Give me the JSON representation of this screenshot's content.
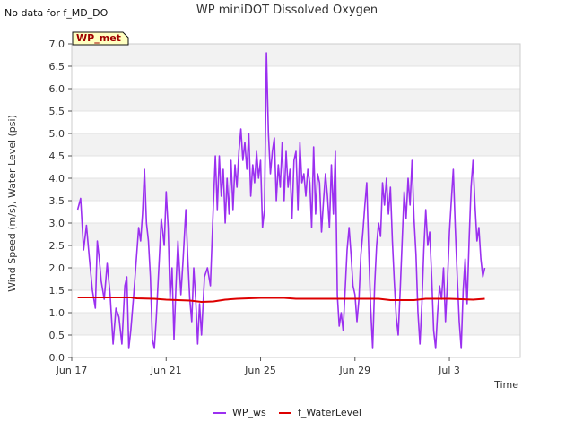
{
  "corner_note": "No data for f_MD_DO",
  "chart_data": {
    "type": "line",
    "title": "WP miniDOT Dissolved Oxygen",
    "xlabel": "Time",
    "ylabel": "Wind Speed (m/s), Water Level (psi)",
    "badge": "WP_met",
    "ylim": [
      0,
      7
    ],
    "yticks": [
      "0.0",
      "0.5",
      "1.0",
      "1.5",
      "2.0",
      "2.5",
      "3.0",
      "3.5",
      "4.0",
      "4.5",
      "5.0",
      "5.5",
      "6.0",
      "6.5",
      "7.0"
    ],
    "xlim": [
      "2024-06-17",
      "2024-07-06"
    ],
    "xticks": [
      {
        "date": "2024-06-17",
        "label": "Jun 17"
      },
      {
        "date": "2024-06-21",
        "label": "Jun 21"
      },
      {
        "date": "2024-06-25",
        "label": "Jun 25"
      },
      {
        "date": "2024-06-29",
        "label": "Jun 29"
      },
      {
        "date": "2024-07-03",
        "label": "Jul 3"
      }
    ],
    "grid": true,
    "legend_position": "bottom",
    "series": [
      {
        "name": "WP_ws",
        "color": "#9b30f0",
        "points": [
          [
            "2024-06-17 06:00",
            3.3
          ],
          [
            "2024-06-17 09:00",
            3.55
          ],
          [
            "2024-06-17 12:00",
            2.4
          ],
          [
            "2024-06-17 15:00",
            2.95
          ],
          [
            "2024-06-17 18:00",
            2.2
          ],
          [
            "2024-06-17 21:00",
            1.5
          ],
          [
            "2024-06-18 00:00",
            1.1
          ],
          [
            "2024-06-18 02:00",
            2.6
          ],
          [
            "2024-06-18 04:00",
            2.2
          ],
          [
            "2024-06-18 06:00",
            1.7
          ],
          [
            "2024-06-18 09:00",
            1.3
          ],
          [
            "2024-06-18 12:00",
            2.1
          ],
          [
            "2024-06-18 15:00",
            1.4
          ],
          [
            "2024-06-18 18:00",
            0.3
          ],
          [
            "2024-06-18 21:00",
            1.1
          ],
          [
            "2024-06-19 00:00",
            0.9
          ],
          [
            "2024-06-19 03:00",
            0.3
          ],
          [
            "2024-06-19 06:00",
            1.6
          ],
          [
            "2024-06-19 08:00",
            1.8
          ],
          [
            "2024-06-19 10:00",
            0.2
          ],
          [
            "2024-06-19 12:00",
            0.6
          ],
          [
            "2024-06-19 15:00",
            1.4
          ],
          [
            "2024-06-19 17:00",
            2.0
          ],
          [
            "2024-06-19 20:00",
            2.9
          ],
          [
            "2024-06-19 22:00",
            2.6
          ],
          [
            "2024-06-20 00:00",
            3.2
          ],
          [
            "2024-06-20 02:00",
            4.2
          ],
          [
            "2024-06-20 04:00",
            3.0
          ],
          [
            "2024-06-20 06:00",
            2.6
          ],
          [
            "2024-06-20 08:00",
            1.8
          ],
          [
            "2024-06-20 10:00",
            0.4
          ],
          [
            "2024-06-20 12:00",
            0.2
          ],
          [
            "2024-06-20 14:00",
            0.9
          ],
          [
            "2024-06-20 17:00",
            2.2
          ],
          [
            "2024-06-20 19:00",
            3.1
          ],
          [
            "2024-06-20 22:00",
            2.5
          ],
          [
            "2024-06-21 00:00",
            3.7
          ],
          [
            "2024-06-21 02:00",
            2.9
          ],
          [
            "2024-06-21 04:00",
            1.3
          ],
          [
            "2024-06-21 06:00",
            2.0
          ],
          [
            "2024-06-21 08:00",
            0.4
          ],
          [
            "2024-06-21 10:00",
            1.6
          ],
          [
            "2024-06-21 12:00",
            2.6
          ],
          [
            "2024-06-21 15:00",
            1.4
          ],
          [
            "2024-06-21 17:00",
            2.1
          ],
          [
            "2024-06-21 20:00",
            3.3
          ],
          [
            "2024-06-21 22:00",
            2.2
          ],
          [
            "2024-06-22 00:00",
            1.3
          ],
          [
            "2024-06-22 02:00",
            0.8
          ],
          [
            "2024-06-22 04:00",
            2.0
          ],
          [
            "2024-06-22 06:00",
            1.3
          ],
          [
            "2024-06-22 08:00",
            0.3
          ],
          [
            "2024-06-22 10:00",
            1.2
          ],
          [
            "2024-06-22 12:00",
            0.5
          ],
          [
            "2024-06-22 15:00",
            1.8
          ],
          [
            "2024-06-22 18:00",
            2.0
          ],
          [
            "2024-06-22 21:00",
            1.6
          ],
          [
            "2024-06-23 00:00",
            3.4
          ],
          [
            "2024-06-23 02:00",
            4.5
          ],
          [
            "2024-06-23 04:00",
            3.3
          ],
          [
            "2024-06-23 06:00",
            4.5
          ],
          [
            "2024-06-23 08:00",
            3.6
          ],
          [
            "2024-06-23 10:00",
            4.2
          ],
          [
            "2024-06-23 12:00",
            3.0
          ],
          [
            "2024-06-23 14:00",
            4.0
          ],
          [
            "2024-06-23 16:00",
            3.2
          ],
          [
            "2024-06-23 18:00",
            4.4
          ],
          [
            "2024-06-23 20:00",
            3.3
          ],
          [
            "2024-06-23 22:00",
            4.3
          ],
          [
            "2024-06-24 00:00",
            3.8
          ],
          [
            "2024-06-24 02:00",
            4.6
          ],
          [
            "2024-06-24 04:00",
            5.1
          ],
          [
            "2024-06-24 06:00",
            4.4
          ],
          [
            "2024-06-24 08:00",
            4.8
          ],
          [
            "2024-06-24 10:00",
            4.2
          ],
          [
            "2024-06-24 12:00",
            5.0
          ],
          [
            "2024-06-24 14:00",
            3.6
          ],
          [
            "2024-06-24 16:00",
            4.3
          ],
          [
            "2024-06-24 18:00",
            3.9
          ],
          [
            "2024-06-24 20:00",
            4.6
          ],
          [
            "2024-06-24 22:00",
            4.0
          ],
          [
            "2024-06-25 00:00",
            4.4
          ],
          [
            "2024-06-25 02:00",
            2.9
          ],
          [
            "2024-06-25 04:00",
            3.3
          ],
          [
            "2024-06-25 06:00",
            6.8
          ],
          [
            "2024-06-25 08:00",
            5.0
          ],
          [
            "2024-06-25 10:00",
            4.1
          ],
          [
            "2024-06-25 12:00",
            4.6
          ],
          [
            "2024-06-25 14:00",
            4.9
          ],
          [
            "2024-06-25 16:00",
            3.5
          ],
          [
            "2024-06-25 18:00",
            4.3
          ],
          [
            "2024-06-25 20:00",
            3.8
          ],
          [
            "2024-06-25 22:00",
            4.8
          ],
          [
            "2024-06-26 00:00",
            3.5
          ],
          [
            "2024-06-26 02:00",
            4.6
          ],
          [
            "2024-06-26 04:00",
            3.8
          ],
          [
            "2024-06-26 06:00",
            4.2
          ],
          [
            "2024-06-26 08:00",
            3.1
          ],
          [
            "2024-06-26 10:00",
            4.4
          ],
          [
            "2024-06-26 12:00",
            4.6
          ],
          [
            "2024-06-26 14:00",
            3.3
          ],
          [
            "2024-06-26 16:00",
            4.8
          ],
          [
            "2024-06-26 18:00",
            3.9
          ],
          [
            "2024-06-26 20:00",
            4.1
          ],
          [
            "2024-06-26 22:00",
            3.6
          ],
          [
            "2024-06-27 00:00",
            4.2
          ],
          [
            "2024-06-27 02:00",
            3.9
          ],
          [
            "2024-06-27 04:00",
            2.9
          ],
          [
            "2024-06-27 06:00",
            4.7
          ],
          [
            "2024-06-27 08:00",
            3.2
          ],
          [
            "2024-06-27 10:00",
            4.1
          ],
          [
            "2024-06-27 12:00",
            3.9
          ],
          [
            "2024-06-27 14:00",
            2.8
          ],
          [
            "2024-06-27 16:00",
            3.5
          ],
          [
            "2024-06-27 18:00",
            4.1
          ],
          [
            "2024-06-27 20:00",
            3.6
          ],
          [
            "2024-06-27 22:00",
            2.9
          ],
          [
            "2024-06-28 00:00",
            4.3
          ],
          [
            "2024-06-28 02:00",
            3.2
          ],
          [
            "2024-06-28 04:00",
            4.6
          ],
          [
            "2024-06-28 06:00",
            1.4
          ],
          [
            "2024-06-28 08:00",
            0.7
          ],
          [
            "2024-06-28 10:00",
            1.0
          ],
          [
            "2024-06-28 12:00",
            0.6
          ],
          [
            "2024-06-28 14:00",
            1.5
          ],
          [
            "2024-06-28 16:00",
            2.4
          ],
          [
            "2024-06-28 18:00",
            2.9
          ],
          [
            "2024-06-28 20:00",
            2.3
          ],
          [
            "2024-06-28 22:00",
            1.6
          ],
          [
            "2024-06-29 00:00",
            1.4
          ],
          [
            "2024-06-29 02:00",
            0.8
          ],
          [
            "2024-06-29 04:00",
            1.3
          ],
          [
            "2024-06-29 06:00",
            2.3
          ],
          [
            "2024-06-29 08:00",
            2.8
          ],
          [
            "2024-06-29 10:00",
            3.4
          ],
          [
            "2024-06-29 12:00",
            3.9
          ],
          [
            "2024-06-29 14:00",
            2.4
          ],
          [
            "2024-06-29 16:00",
            1.1
          ],
          [
            "2024-06-29 18:00",
            0.2
          ],
          [
            "2024-06-29 20:00",
            1.6
          ],
          [
            "2024-06-29 22:00",
            2.5
          ],
          [
            "2024-06-30 00:00",
            3.0
          ],
          [
            "2024-06-30 02:00",
            2.7
          ],
          [
            "2024-06-30 04:00",
            3.9
          ],
          [
            "2024-06-30 06:00",
            3.4
          ],
          [
            "2024-06-30 08:00",
            4.0
          ],
          [
            "2024-06-30 10:00",
            3.2
          ],
          [
            "2024-06-30 12:00",
            3.8
          ],
          [
            "2024-06-30 14:00",
            2.6
          ],
          [
            "2024-06-30 16:00",
            1.7
          ],
          [
            "2024-06-30 18:00",
            0.9
          ],
          [
            "2024-06-30 20:00",
            0.5
          ],
          [
            "2024-06-30 22:00",
            1.5
          ],
          [
            "2024-07-01 00:00",
            2.6
          ],
          [
            "2024-07-01 02:00",
            3.7
          ],
          [
            "2024-07-01 04:00",
            3.1
          ],
          [
            "2024-07-01 06:00",
            4.0
          ],
          [
            "2024-07-01 08:00",
            3.4
          ],
          [
            "2024-07-01 10:00",
            4.4
          ],
          [
            "2024-07-01 12:00",
            3.1
          ],
          [
            "2024-07-01 14:00",
            2.3
          ],
          [
            "2024-07-01 16:00",
            1.0
          ],
          [
            "2024-07-01 18:00",
            0.3
          ],
          [
            "2024-07-01 20:00",
            1.2
          ],
          [
            "2024-07-01 22:00",
            2.4
          ],
          [
            "2024-07-02 00:00",
            3.3
          ],
          [
            "2024-07-02 02:00",
            2.5
          ],
          [
            "2024-07-02 04:00",
            2.8
          ],
          [
            "2024-07-02 06:00",
            1.8
          ],
          [
            "2024-07-02 08:00",
            0.6
          ],
          [
            "2024-07-02 10:00",
            0.2
          ],
          [
            "2024-07-02 12:00",
            1.0
          ],
          [
            "2024-07-02 14:00",
            1.6
          ],
          [
            "2024-07-02 16:00",
            1.3
          ],
          [
            "2024-07-02 18:00",
            2.0
          ],
          [
            "2024-07-02 20:00",
            0.8
          ],
          [
            "2024-07-02 22:00",
            1.7
          ],
          [
            "2024-07-03 00:00",
            2.8
          ],
          [
            "2024-07-03 02:00",
            3.5
          ],
          [
            "2024-07-03 04:00",
            4.2
          ],
          [
            "2024-07-03 06:00",
            2.9
          ],
          [
            "2024-07-03 08:00",
            1.8
          ],
          [
            "2024-07-03 10:00",
            0.8
          ],
          [
            "2024-07-03 12:00",
            0.2
          ],
          [
            "2024-07-03 14:00",
            1.5
          ],
          [
            "2024-07-03 16:00",
            2.2
          ],
          [
            "2024-07-03 18:00",
            1.2
          ],
          [
            "2024-07-03 20:00",
            2.6
          ],
          [
            "2024-07-03 22:00",
            3.8
          ],
          [
            "2024-07-04 00:00",
            4.4
          ],
          [
            "2024-07-04 02:00",
            3.4
          ],
          [
            "2024-07-04 04:00",
            2.6
          ],
          [
            "2024-07-04 06:00",
            2.9
          ],
          [
            "2024-07-04 08:00",
            2.2
          ],
          [
            "2024-07-04 10:00",
            1.8
          ],
          [
            "2024-07-04 12:00",
            2.0
          ]
        ]
      },
      {
        "name": "f_WaterLevel",
        "color": "#dd0000",
        "points": [
          [
            "2024-06-17 06:00",
            1.34
          ],
          [
            "2024-06-18 12:00",
            1.34
          ],
          [
            "2024-06-19 12:00",
            1.34
          ],
          [
            "2024-06-19 18:00",
            1.32
          ],
          [
            "2024-06-20 12:00",
            1.31
          ],
          [
            "2024-06-21 00:00",
            1.29
          ],
          [
            "2024-06-22 00:00",
            1.27
          ],
          [
            "2024-06-22 12:00",
            1.24
          ],
          [
            "2024-06-23 00:00",
            1.25
          ],
          [
            "2024-06-23 12:00",
            1.29
          ],
          [
            "2024-06-24 00:00",
            1.31
          ],
          [
            "2024-06-24 12:00",
            1.32
          ],
          [
            "2024-06-25 00:00",
            1.33
          ],
          [
            "2024-06-26 00:00",
            1.33
          ],
          [
            "2024-06-26 12:00",
            1.31
          ],
          [
            "2024-06-28 00:00",
            1.31
          ],
          [
            "2024-06-30 00:00",
            1.31
          ],
          [
            "2024-06-30 12:00",
            1.28
          ],
          [
            "2024-07-01 12:00",
            1.28
          ],
          [
            "2024-07-02 00:00",
            1.31
          ],
          [
            "2024-07-03 00:00",
            1.31
          ],
          [
            "2024-07-04 00:00",
            1.29
          ],
          [
            "2024-07-04 12:00",
            1.31
          ]
        ]
      }
    ]
  }
}
